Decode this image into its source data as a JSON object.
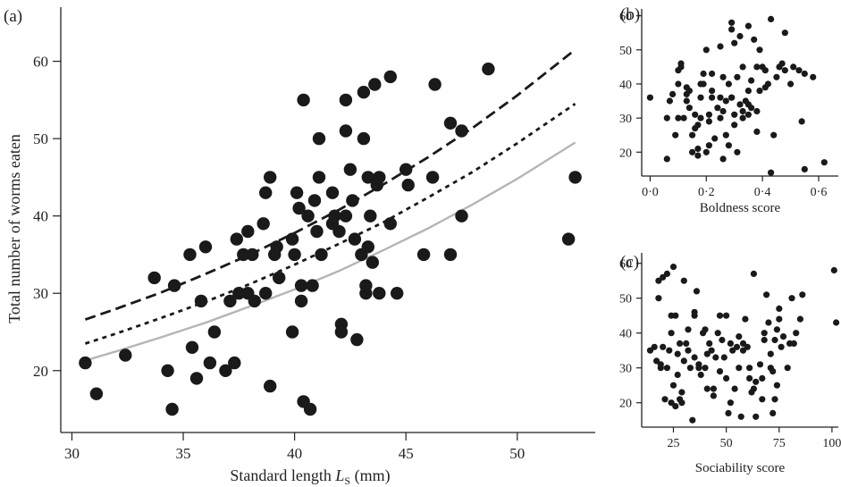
{
  "chart_data": [
    {
      "panel": "(a)",
      "type": "scatter",
      "xlabel": "Standard length",
      "xlabel_symbol": "L",
      "xlabel_subscript": "S",
      "xlabel_unit": "(mm)",
      "ylabel": "Total number of worms eaten",
      "xlim": [
        29.5,
        53.5
      ],
      "ylim": [
        12,
        67
      ],
      "xticks": [
        30,
        35,
        40,
        45,
        50
      ],
      "yticks": [
        20,
        30,
        40,
        50,
        60
      ],
      "points": [
        [
          30.6,
          21
        ],
        [
          31.1,
          17
        ],
        [
          32.4,
          22
        ],
        [
          33.7,
          32
        ],
        [
          34.3,
          20
        ],
        [
          34.6,
          31
        ],
        [
          34.5,
          15
        ],
        [
          35.3,
          35
        ],
        [
          35.4,
          23
        ],
        [
          35.6,
          19
        ],
        [
          35.8,
          29
        ],
        [
          36.0,
          36
        ],
        [
          36.2,
          21
        ],
        [
          36.4,
          25
        ],
        [
          36.9,
          20
        ],
        [
          37.1,
          29
        ],
        [
          37.3,
          21
        ],
        [
          37.4,
          37
        ],
        [
          37.5,
          30
        ],
        [
          37.7,
          35
        ],
        [
          37.9,
          30
        ],
        [
          37.9,
          38
        ],
        [
          38.1,
          35
        ],
        [
          38.2,
          29
        ],
        [
          38.6,
          39
        ],
        [
          38.7,
          30
        ],
        [
          38.7,
          43
        ],
        [
          38.9,
          45
        ],
        [
          38.9,
          18
        ],
        [
          39.1,
          35
        ],
        [
          39.2,
          36
        ],
        [
          39.3,
          32
        ],
        [
          39.9,
          25
        ],
        [
          39.9,
          37
        ],
        [
          40.0,
          35
        ],
        [
          40.1,
          43
        ],
        [
          40.2,
          41
        ],
        [
          40.3,
          31
        ],
        [
          40.3,
          29
        ],
        [
          40.4,
          16
        ],
        [
          40.4,
          55
        ],
        [
          40.6,
          40
        ],
        [
          40.7,
          15
        ],
        [
          40.8,
          31
        ],
        [
          40.9,
          42
        ],
        [
          41.0,
          38
        ],
        [
          41.1,
          45
        ],
        [
          41.1,
          50
        ],
        [
          41.2,
          35
        ],
        [
          41.7,
          43
        ],
        [
          41.7,
          39
        ],
        [
          41.8,
          40
        ],
        [
          42.0,
          38
        ],
        [
          42.1,
          26
        ],
        [
          42.1,
          25
        ],
        [
          42.3,
          40
        ],
        [
          42.3,
          51
        ],
        [
          42.3,
          55
        ],
        [
          42.5,
          46
        ],
        [
          42.6,
          42
        ],
        [
          42.7,
          37
        ],
        [
          42.8,
          24
        ],
        [
          43.0,
          35
        ],
        [
          43.1,
          50
        ],
        [
          43.1,
          56
        ],
        [
          43.2,
          30
        ],
        [
          43.2,
          31
        ],
        [
          43.3,
          45
        ],
        [
          43.3,
          36
        ],
        [
          43.4,
          40
        ],
        [
          43.5,
          34
        ],
        [
          43.6,
          57
        ],
        [
          43.7,
          44
        ],
        [
          43.8,
          45
        ],
        [
          43.8,
          30
        ],
        [
          44.3,
          58
        ],
        [
          44.3,
          39
        ],
        [
          44.6,
          30
        ],
        [
          45.0,
          46
        ],
        [
          45.1,
          44
        ],
        [
          45.8,
          35
        ],
        [
          46.2,
          45
        ],
        [
          46.3,
          57
        ],
        [
          47.0,
          35
        ],
        [
          47.0,
          52
        ],
        [
          47.5,
          40
        ],
        [
          47.5,
          51
        ],
        [
          48.7,
          59
        ],
        [
          52.3,
          37
        ],
        [
          52.6,
          45
        ]
      ],
      "curves": [
        {
          "style": "long-dash",
          "color": "#1a1a1a",
          "x": [
            30.6,
            32,
            34,
            36,
            38,
            40,
            42,
            44,
            46,
            48,
            50,
            52.6
          ],
          "y": [
            26.6,
            28.0,
            30.1,
            32.5,
            35.0,
            37.8,
            40.8,
            44.1,
            47.6,
            51.4,
            55.6,
            61.5
          ]
        },
        {
          "style": "short-dash",
          "color": "#1a1a1a",
          "x": [
            30.6,
            32,
            34,
            36,
            38,
            40,
            42,
            44,
            46,
            48,
            50,
            52.6
          ],
          "y": [
            23.5,
            24.8,
            26.8,
            28.9,
            31.2,
            33.7,
            36.4,
            39.2,
            42.4,
            45.7,
            49.4,
            54.5
          ]
        },
        {
          "style": "solid",
          "color": "#b5b5b5",
          "x": [
            30.6,
            32,
            34,
            36,
            38,
            40,
            42,
            44,
            46,
            48,
            50,
            52.6
          ],
          "y": [
            21.3,
            22.5,
            24.3,
            26.2,
            28.3,
            30.5,
            32.9,
            35.6,
            38.4,
            41.5,
            44.8,
            49.5
          ]
        }
      ]
    },
    {
      "panel": "(b)",
      "type": "scatter",
      "xlabel": "Boldness score",
      "ylabel": "",
      "xlim": [
        -0.03,
        0.67
      ],
      "ylim": [
        13,
        62
      ],
      "xticks": [
        0,
        0.2,
        0.4,
        0.6
      ],
      "xtick_labels": [
        "0·0",
        "0·2",
        "0·4",
        "0·6"
      ],
      "yticks": [
        20,
        30,
        40,
        50,
        60
      ],
      "points": [
        [
          0.0,
          36
        ],
        [
          0.06,
          30
        ],
        [
          0.06,
          18
        ],
        [
          0.07,
          35
        ],
        [
          0.08,
          37
        ],
        [
          0.09,
          25
        ],
        [
          0.1,
          40
        ],
        [
          0.1,
          44
        ],
        [
          0.1,
          30
        ],
        [
          0.11,
          45
        ],
        [
          0.11,
          46
        ],
        [
          0.12,
          30
        ],
        [
          0.13,
          37
        ],
        [
          0.13,
          35
        ],
        [
          0.13,
          39
        ],
        [
          0.14,
          38
        ],
        [
          0.14,
          33
        ],
        [
          0.15,
          20
        ],
        [
          0.15,
          25
        ],
        [
          0.16,
          31
        ],
        [
          0.16,
          27
        ],
        [
          0.17,
          28
        ],
        [
          0.17,
          21
        ],
        [
          0.17,
          19
        ],
        [
          0.18,
          30
        ],
        [
          0.18,
          36
        ],
        [
          0.18,
          40
        ],
        [
          0.19,
          40
        ],
        [
          0.19,
          43
        ],
        [
          0.2,
          20
        ],
        [
          0.2,
          50
        ],
        [
          0.21,
          29
        ],
        [
          0.21,
          31
        ],
        [
          0.21,
          22
        ],
        [
          0.22,
          36
        ],
        [
          0.22,
          43
        ],
        [
          0.22,
          38
        ],
        [
          0.23,
          24
        ],
        [
          0.24,
          33
        ],
        [
          0.25,
          51
        ],
        [
          0.25,
          36
        ],
        [
          0.25,
          30
        ],
        [
          0.26,
          42
        ],
        [
          0.26,
          18
        ],
        [
          0.26,
          32
        ],
        [
          0.27,
          25
        ],
        [
          0.27,
          35
        ],
        [
          0.28,
          40
        ],
        [
          0.28,
          22
        ],
        [
          0.29,
          36
        ],
        [
          0.29,
          36
        ],
        [
          0.29,
          56
        ],
        [
          0.29,
          58
        ],
        [
          0.3,
          52
        ],
        [
          0.3,
          28
        ],
        [
          0.3,
          31
        ],
        [
          0.31,
          20
        ],
        [
          0.31,
          42
        ],
        [
          0.32,
          34
        ],
        [
          0.32,
          54
        ],
        [
          0.33,
          32
        ],
        [
          0.33,
          30
        ],
        [
          0.33,
          45
        ],
        [
          0.34,
          35
        ],
        [
          0.35,
          57
        ],
        [
          0.35,
          34
        ],
        [
          0.35,
          38
        ],
        [
          0.35,
          31
        ],
        [
          0.36,
          33
        ],
        [
          0.36,
          41
        ],
        [
          0.37,
          53
        ],
        [
          0.38,
          45
        ],
        [
          0.38,
          26
        ],
        [
          0.38,
          32
        ],
        [
          0.39,
          50
        ],
        [
          0.39,
          38
        ],
        [
          0.4,
          45
        ],
        [
          0.41,
          44
        ],
        [
          0.41,
          39
        ],
        [
          0.42,
          40
        ],
        [
          0.43,
          59
        ],
        [
          0.43,
          14
        ],
        [
          0.44,
          25
        ],
        [
          0.45,
          42
        ],
        [
          0.46,
          45
        ],
        [
          0.47,
          46
        ],
        [
          0.48,
          55
        ],
        [
          0.48,
          44
        ],
        [
          0.5,
          40
        ],
        [
          0.51,
          45
        ],
        [
          0.53,
          44
        ],
        [
          0.54,
          29
        ],
        [
          0.55,
          15
        ],
        [
          0.55,
          43
        ],
        [
          0.58,
          42
        ],
        [
          0.62,
          17
        ]
      ]
    },
    {
      "panel": "(c)",
      "type": "scatter",
      "xlabel": "Sociability score",
      "ylabel": "",
      "xlim": [
        10,
        103
      ],
      "ylim": [
        13,
        63
      ],
      "xticks": [
        25,
        50,
        75,
        100
      ],
      "yticks": [
        20,
        30,
        40,
        50,
        60
      ],
      "points": [
        [
          14,
          35
        ],
        [
          16,
          36
        ],
        [
          17,
          32
        ],
        [
          18,
          50
        ],
        [
          18,
          55
        ],
        [
          19,
          30
        ],
        [
          19,
          31
        ],
        [
          20,
          36
        ],
        [
          20,
          56
        ],
        [
          21,
          21
        ],
        [
          22,
          30
        ],
        [
          22,
          57
        ],
        [
          23,
          35
        ],
        [
          24,
          40
        ],
        [
          24,
          20
        ],
        [
          24,
          45
        ],
        [
          25,
          59
        ],
        [
          25,
          25
        ],
        [
          26,
          19
        ],
        [
          26,
          45
        ],
        [
          27,
          28
        ],
        [
          27,
          34
        ],
        [
          28,
          21
        ],
        [
          28,
          37
        ],
        [
          29,
          23
        ],
        [
          29,
          20
        ],
        [
          30,
          32
        ],
        [
          30,
          55
        ],
        [
          31,
          37
        ],
        [
          32,
          35
        ],
        [
          32,
          41
        ],
        [
          33,
          30
        ],
        [
          34,
          15
        ],
        [
          35,
          45
        ],
        [
          35,
          33
        ],
        [
          35,
          46
        ],
        [
          36,
          52
        ],
        [
          37,
          30
        ],
        [
          37,
          31
        ],
        [
          38,
          28
        ],
        [
          39,
          40
        ],
        [
          40,
          30
        ],
        [
          40,
          41
        ],
        [
          41,
          24
        ],
        [
          41,
          34
        ],
        [
          42,
          37
        ],
        [
          43,
          35
        ],
        [
          44,
          24
        ],
        [
          44,
          22
        ],
        [
          45,
          33
        ],
        [
          46,
          40
        ],
        [
          47,
          45
        ],
        [
          47,
          29
        ],
        [
          48,
          38
        ],
        [
          49,
          33
        ],
        [
          50,
          27
        ],
        [
          50,
          45
        ],
        [
          51,
          17
        ],
        [
          52,
          37
        ],
        [
          52,
          20
        ],
        [
          53,
          35
        ],
        [
          54,
          24
        ],
        [
          55,
          36
        ],
        [
          56,
          39
        ],
        [
          56,
          30
        ],
        [
          57,
          16
        ],
        [
          58,
          35
        ],
        [
          58,
          37
        ],
        [
          59,
          44
        ],
        [
          60,
          36
        ],
        [
          61,
          27
        ],
        [
          61,
          30
        ],
        [
          62,
          23
        ],
        [
          63,
          24
        ],
        [
          63,
          57
        ],
        [
          64,
          16
        ],
        [
          64,
          26
        ],
        [
          66,
          31
        ],
        [
          67,
          27
        ],
        [
          67,
          21
        ],
        [
          68,
          38
        ],
        [
          68,
          40
        ],
        [
          69,
          51
        ],
        [
          70,
          43
        ],
        [
          71,
          30
        ],
        [
          71,
          34
        ],
        [
          72,
          29
        ],
        [
          72,
          17
        ],
        [
          73,
          38
        ],
        [
          73,
          21
        ],
        [
          74,
          41
        ],
        [
          74,
          25
        ],
        [
          75,
          47
        ],
        [
          75,
          44
        ],
        [
          76,
          36
        ],
        [
          77,
          39
        ],
        [
          79,
          30
        ],
        [
          80,
          37
        ],
        [
          81,
          50
        ],
        [
          82,
          37
        ],
        [
          83,
          40
        ],
        [
          85,
          44
        ],
        [
          86,
          51
        ],
        [
          101,
          58
        ],
        [
          102,
          43
        ]
      ]
    }
  ]
}
